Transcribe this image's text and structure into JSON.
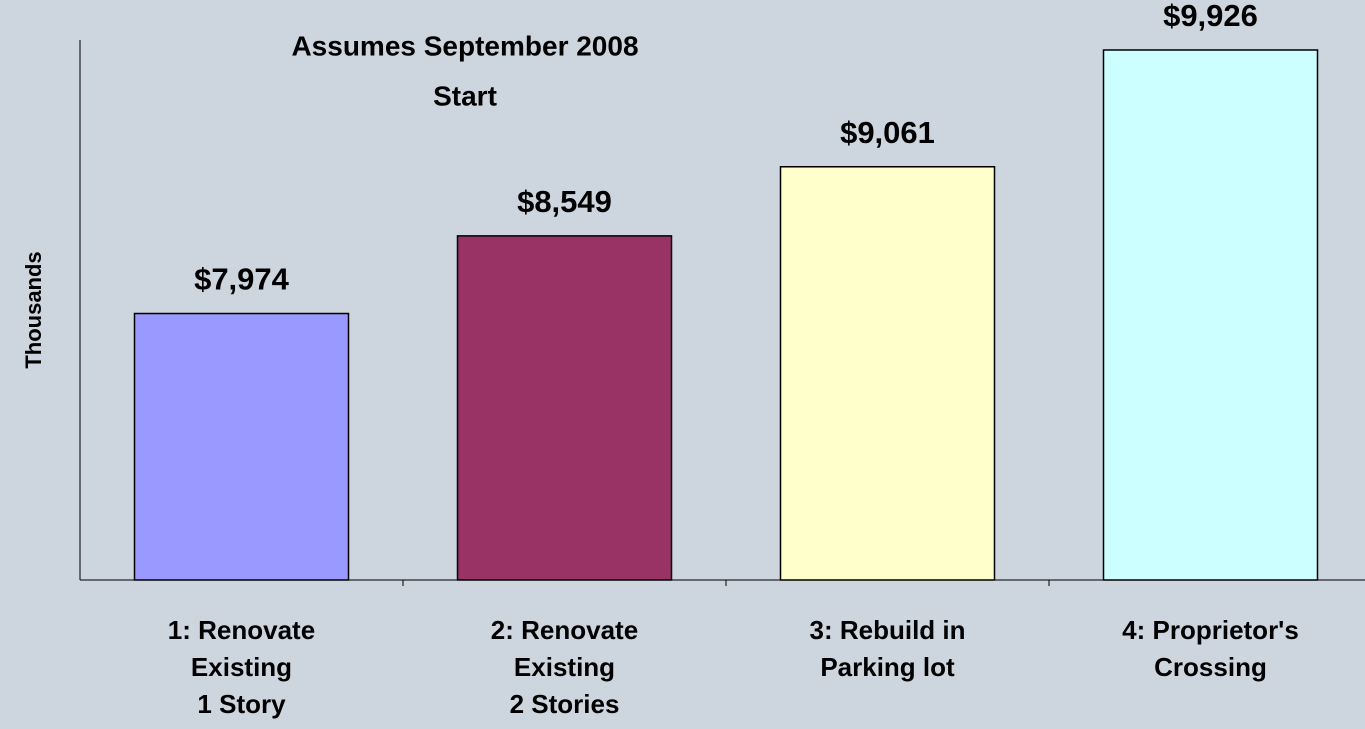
{
  "chart_data": {
    "type": "bar",
    "title": [
      "Assumes September 2008",
      "Start"
    ],
    "y_label": "Thousands",
    "categories": [
      [
        "1:  Renovate",
        "Existing",
        "1 Story"
      ],
      [
        "2:  Renovate",
        "Existing",
        "2 Stories"
      ],
      [
        "3:  Rebuild in",
        "Parking lot"
      ],
      [
        "4:  Proprietor's",
        "Crossing"
      ]
    ],
    "values": [
      7974,
      8549,
      9061,
      9926
    ],
    "value_labels": [
      "$7,974",
      "$8,549",
      "$9,061",
      "$9,926"
    ],
    "colors": [
      "#9999ff",
      "#993366",
      "#ffffcc",
      "#ccffff"
    ],
    "ylim": [
      6000,
      10000
    ],
    "grid": false
  }
}
